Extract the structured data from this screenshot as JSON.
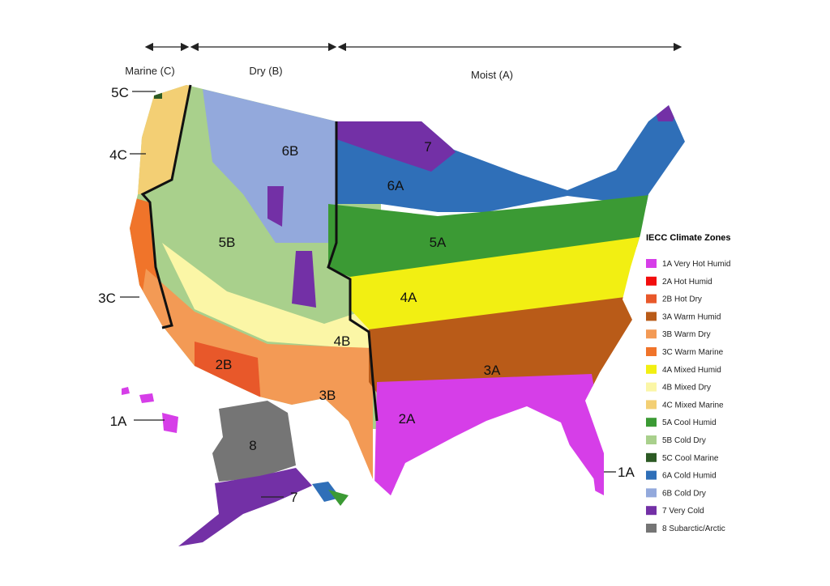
{
  "header": {
    "regimes": [
      {
        "label": "Marine (C)"
      },
      {
        "label": "Dry (B)"
      },
      {
        "label": "Moist (A)"
      }
    ]
  },
  "map_labels": [
    {
      "label": "5C"
    },
    {
      "label": "4C"
    },
    {
      "label": "3C"
    },
    {
      "label": "1A"
    },
    {
      "label": "6B"
    },
    {
      "label": "5B"
    },
    {
      "label": "2B"
    },
    {
      "label": "3B"
    },
    {
      "label": "4B"
    },
    {
      "label": "7"
    },
    {
      "label": "6A"
    },
    {
      "label": "5A"
    },
    {
      "label": "4A"
    },
    {
      "label": "3A"
    },
    {
      "label": "2A"
    },
    {
      "label": "8"
    },
    {
      "label": "7"
    },
    {
      "label": "1A"
    }
  ],
  "legend": {
    "title": "IECC Climate Zones",
    "items": [
      {
        "label": "1A Very Hot Humid",
        "color": "#d63ee8"
      },
      {
        "label": "2A Hot Humid",
        "color": "#f20d0d"
      },
      {
        "label": "2B Hot Dry",
        "color": "#e8582a"
      },
      {
        "label": "3A Warm Humid",
        "color": "#b95b18"
      },
      {
        "label": "3B Warm Dry",
        "color": "#f39a55"
      },
      {
        "label": "3C Warm Marine",
        "color": "#f0742a"
      },
      {
        "label": "4A Mixed Humid",
        "color": "#f2ef12"
      },
      {
        "label": "4B Mixed Dry",
        "color": "#fbf6a6"
      },
      {
        "label": "4C Mixed Marine",
        "color": "#f3cf74"
      },
      {
        "label": "5A Cool Humid",
        "color": "#3b9a34"
      },
      {
        "label": "5B Cold Dry",
        "color": "#a9d08c"
      },
      {
        "label": "5C Cool Marine",
        "color": "#2c5a24"
      },
      {
        "label": "6A Cold Humid",
        "color": "#2f6fb8"
      },
      {
        "label": "6B Cold Dry",
        "color": "#93a9dc"
      },
      {
        "label": "7 Very Cold",
        "color": "#7330a6"
      },
      {
        "label": "8 Subarctic/Arctic",
        "color": "#757575"
      }
    ]
  }
}
